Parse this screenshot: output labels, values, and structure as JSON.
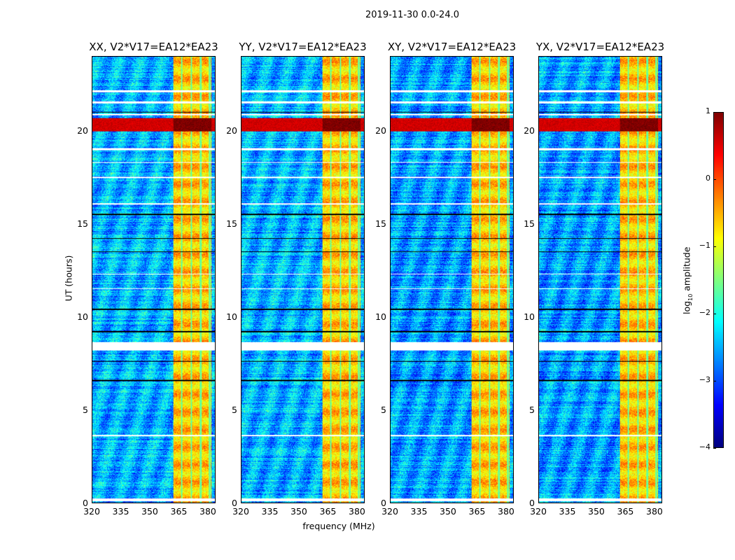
{
  "suptitle": "2019-11-30 0.0-24.0",
  "chart_data": {
    "type": "heatmap",
    "title": "2019-11-30 0.0-24.0",
    "xlabel": "frequency (MHz)",
    "ylabel": "UT (hours)",
    "xlim": [
      320,
      384
    ],
    "ylim": [
      0,
      24
    ],
    "xticks": [
      "320",
      "335",
      "350",
      "365",
      "380"
    ],
    "xtick_values": [
      320,
      335,
      350,
      365,
      380
    ],
    "yticks": [
      "0",
      "5",
      "10",
      "15",
      "20"
    ],
    "ytick_values": [
      0,
      5,
      10,
      15,
      20
    ],
    "panels": [
      {
        "title": "XX, V2*V17=EA12*EA23",
        "background_log_amp": -2.5
      },
      {
        "title": "YY, V2*V17=EA12*EA23",
        "background_log_amp": -2.5
      },
      {
        "title": "XY, V2*V17=EA12*EA23",
        "background_log_amp": -2.6
      },
      {
        "title": "YX, V2*V17=EA12*EA23",
        "background_log_amp": -2.6
      }
    ],
    "rfi_band_mhz": [
      362,
      382
    ],
    "rfi_band_log_amp": -0.6,
    "rfi_band_gaps_mhz": [
      366.5,
      371.5,
      376.5,
      381
    ],
    "strong_rfi_hours": [
      20.0,
      20.7
    ],
    "strong_rfi_log_amp": 0.6,
    "flagged_hours": [
      [
        0.1,
        0.25
      ],
      [
        8.2,
        8.65
      ],
      [
        16.05,
        16.15
      ],
      [
        19.0,
        19.1
      ],
      [
        20.85,
        20.95
      ],
      [
        21.5,
        21.6
      ],
      [
        3.6,
        3.65
      ],
      [
        12.3,
        12.35
      ],
      [
        11.5,
        11.55
      ],
      [
        22.1,
        22.2
      ],
      [
        17.5,
        17.55
      ],
      [
        18.3,
        18.35
      ]
    ],
    "dark_hours": [
      [
        15.5,
        15.56
      ],
      [
        10.4,
        10.46
      ],
      [
        6.55,
        6.62
      ],
      [
        14.2,
        14.25
      ],
      [
        13.5,
        13.55
      ],
      [
        9.2,
        9.25
      ],
      [
        7.6,
        7.64
      ],
      [
        21.0,
        21.05
      ]
    ],
    "colorbar": {
      "label_prefix": "log",
      "label_sub": "10",
      "label_suffix": " amplitude",
      "range": [
        -4,
        1
      ],
      "ticks": [
        "1",
        "0",
        "−1",
        "−2",
        "−3",
        "−4"
      ],
      "tick_values": [
        1,
        0,
        -1,
        -2,
        -3,
        -4
      ],
      "colormap": "jet"
    }
  }
}
